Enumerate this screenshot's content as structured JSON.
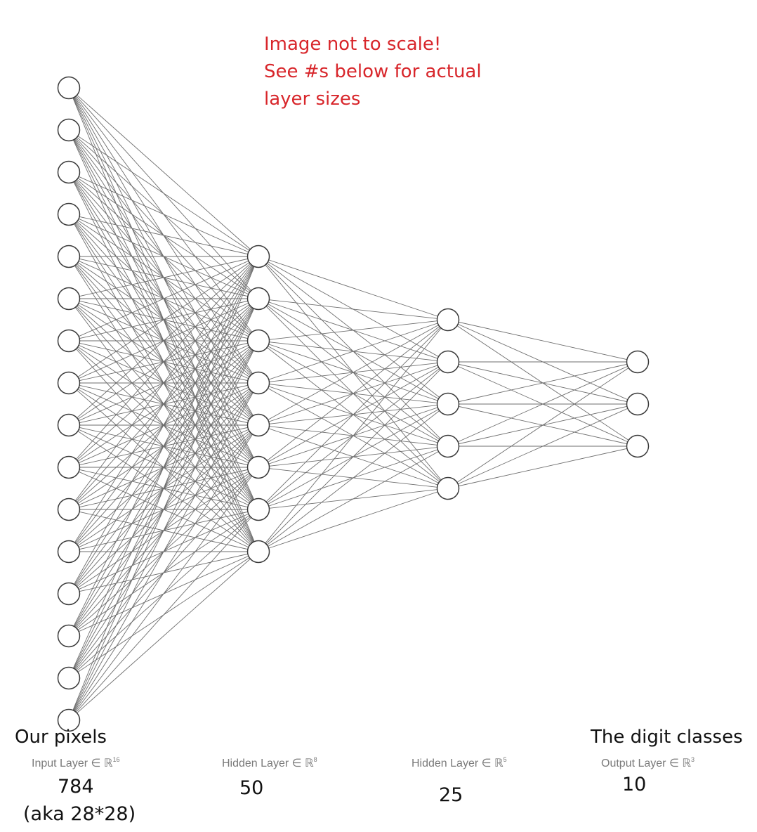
{
  "annotation": {
    "lines": [
      "Image not to scale!",
      "See #s below for actual",
      "layer sizes"
    ],
    "color": "#d8262b"
  },
  "layers": [
    {
      "caption": "Our pixels",
      "label": "Input Layer ∈ ℝ",
      "dim": "16",
      "size": "784",
      "size_note": "(aka 28*28)",
      "node_count": 16
    },
    {
      "caption": "",
      "label": "Hidden Layer ∈ ℝ",
      "dim": "8",
      "size": "50",
      "size_note": "",
      "node_count": 8
    },
    {
      "caption": "",
      "label": "Hidden Layer ∈ ℝ",
      "dim": "5",
      "size": "25",
      "size_note": "",
      "node_count": 5
    },
    {
      "caption": "The digit classes",
      "label": "Output Layer ∈ ℝ",
      "dim": "3",
      "size": "10",
      "size_note": "",
      "node_count": 3
    }
  ],
  "style": {
    "edge_color": "#6e6e6e",
    "node_stroke": "#3a3a3a",
    "node_fill": "#ffffff"
  }
}
